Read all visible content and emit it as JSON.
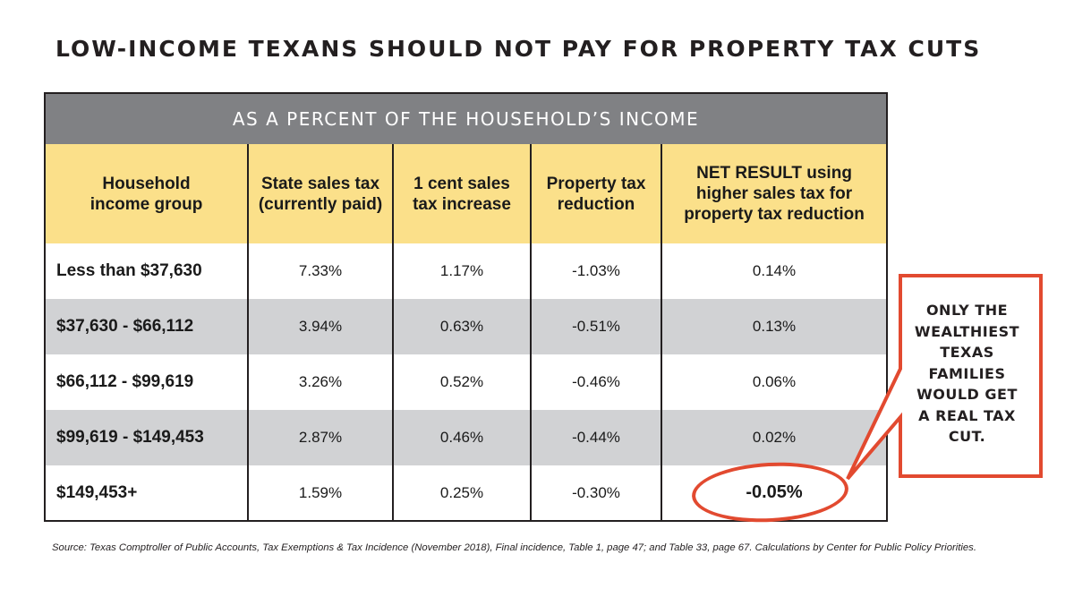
{
  "title": "Low-income Texans should not pay for property tax cuts",
  "colors": {
    "banner": "#808184",
    "header": "#fbe08a",
    "shade": "#d1d2d4",
    "accent": "#e24a30"
  },
  "chart_data": {
    "type": "table",
    "title": "Low-income Texans should not pay for property tax cuts",
    "banner": "As a percent of the household’s income",
    "columns": [
      "Household income group",
      "State sales tax (currently paid)",
      "1 cent sales tax increase",
      "Property tax reduction",
      "NET RESULT using higher sales tax for property tax reduction"
    ],
    "rows": [
      [
        "Less than $37,630",
        "7.33%",
        "1.17%",
        "-1.03%",
        "0.14%"
      ],
      [
        "$37,630 - $66,112",
        "3.94%",
        "0.63%",
        "-0.51%",
        "0.13%"
      ],
      [
        "$66,112 - $99,619",
        "3.26%",
        "0.52%",
        "-0.46%",
        "0.06%"
      ],
      [
        "$99,619 - $149,453",
        "2.87%",
        "0.46%",
        "-0.44%",
        "0.02%"
      ],
      [
        "$149,453+",
        "1.59%",
        "0.25%",
        "-0.30%",
        "-0.05%"
      ]
    ],
    "highlight": "-0.05%"
  },
  "callout": {
    "lines": [
      "Only the",
      "wealthiest",
      "Texas",
      "families",
      "would get",
      "a real tax",
      "cut."
    ]
  },
  "source": "Source: Texas Comptroller of Public Accounts, Tax Exemptions & Tax Incidence (November 2018), Final incidence, Table 1, page 47; and Table 33, page 67. Calculations by Center for Public Policy Priorities."
}
